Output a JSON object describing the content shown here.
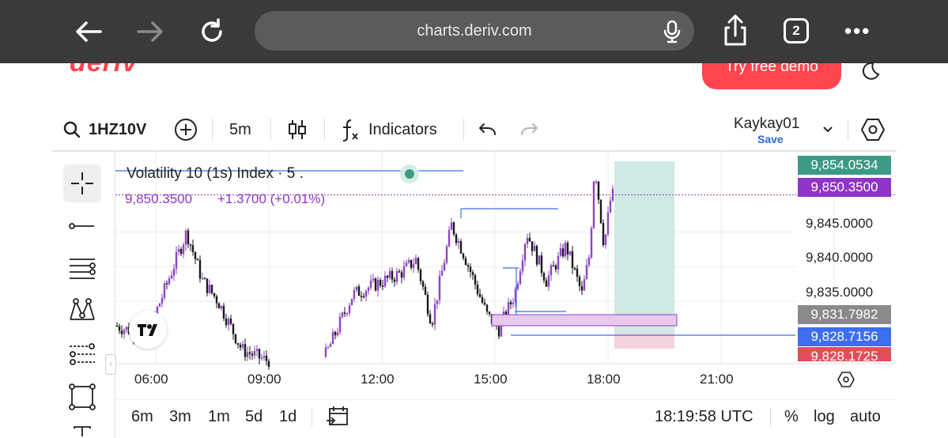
{
  "browser": {
    "url": "charts.deriv.com",
    "tab_count": "2"
  },
  "site": {
    "logo_text": "deriv",
    "cta_label": "Try free demo"
  },
  "toolbar": {
    "symbol": "1HZ10V",
    "interval": "5m",
    "indicators_label": "Indicators",
    "account_name": "Kaykay01",
    "save_label": "Save"
  },
  "legend": {
    "title": "Volatility 10 (1s) Index · 5 .",
    "price": "9,850.3500",
    "change": "+1.3700 (+0.01%)"
  },
  "price_tags": {
    "high": "9,854.0534",
    "current": "9,850.3500",
    "grey": "9,831.7982",
    "blue": "9,828.7156",
    "red": "9,828.1725"
  },
  "colors": {
    "bull": "#8e44c4",
    "bear": "#1a1a1a",
    "profit_zone": "#cfe9e4",
    "loss_zone": "#f5d3dd",
    "tag_green": "#3d9a84",
    "tag_purple": "#8e35c8",
    "tag_grey": "#8a8a8a",
    "tag_blue": "#3d6ef0",
    "tag_red": "#e34d5a"
  },
  "bottom_bar": {
    "periods": [
      "6m",
      "3m",
      "1m",
      "5d",
      "1d"
    ],
    "clock": "18:19:58 UTC",
    "percent_label": "%",
    "log_label": "log",
    "auto_label": "auto"
  },
  "chart_data": {
    "type": "candlestick",
    "symbol": "Volatility 10 (1s) Index",
    "x_tick_labels": [
      "06:00",
      "09:00",
      "12:00",
      "15:00",
      "18:00",
      "21:00"
    ],
    "y_tick_labels": [
      "9,845.0000",
      "9,840.0000",
      "9,835.0000"
    ],
    "y_range": [
      9826,
      9856
    ],
    "open_price": 9829.5,
    "close_price": 9850.35,
    "trade_zones": {
      "entry": 9830.5,
      "take_profit": 9854.0534,
      "stop_loss": 9828.1725
    },
    "grid": true
  }
}
